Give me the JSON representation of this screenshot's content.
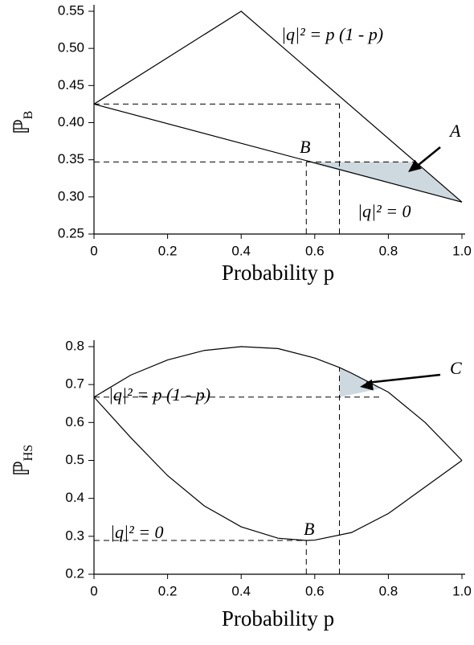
{
  "chart_data": [
    {
      "type": "line",
      "xlabel": "Probability p",
      "ylabel": "ℙ",
      "ylabel_sub": "B",
      "xlim": [
        0,
        1
      ],
      "xticks": [
        0,
        0.2,
        0.4,
        0.6,
        0.8,
        {
          "value": 1,
          "label": "1.0"
        }
      ],
      "ylim": [
        0.25,
        0.55
      ],
      "yticks": [
        0.25,
        {
          "value": 0.3,
          "label": "0.30"
        },
        0.35,
        {
          "value": 0.4,
          "label": "0.40"
        },
        0.45,
        {
          "value": 0.5,
          "label": "0.50"
        },
        0.55
      ],
      "series": [
        {
          "name": "|q|² = p (1 - p)",
          "color": "#000",
          "x": [
            0,
            0.4,
            1
          ],
          "values": [
            0.425,
            0.55,
            0.293
          ]
        },
        {
          "name": "|q|² = 0",
          "color": "#000",
          "x": [
            0,
            1
          ],
          "values": [
            0.425,
            0.293
          ]
        }
      ],
      "reference_lines": [
        {
          "x": [
            0,
            0.667
          ],
          "values": [
            0.425,
            0.425
          ]
        },
        {
          "x": [
            0.667,
            0.667
          ],
          "values": [
            0.25,
            0.425
          ]
        },
        {
          "x": [
            0,
            0.87
          ],
          "values": [
            0.347,
            0.347
          ]
        },
        {
          "x": [
            0.577,
            0.577
          ],
          "values": [
            0.25,
            0.347
          ]
        }
      ],
      "region": {
        "name": "A",
        "color": "#cdd8df",
        "x": [
          0.577,
          0.87,
          1
        ],
        "values": [
          0.347,
          0.347,
          0.293
        ]
      },
      "point_label": "B"
    },
    {
      "type": "line",
      "xlabel": "Probability p",
      "ylabel": "ℙ",
      "ylabel_sub": "HS",
      "xlim": [
        0,
        1
      ],
      "xticks": [
        0,
        0.2,
        0.4,
        0.6,
        0.8,
        {
          "value": 1,
          "label": "1.0"
        }
      ],
      "ylim": [
        0.2,
        0.8
      ],
      "yticks": [
        0.2,
        0.3,
        0.4,
        0.5,
        0.6,
        0.7,
        0.8
      ],
      "series": [
        {
          "name": "|q|² = p (1 - p)",
          "color": "#000",
          "x": [
            0,
            0.1,
            0.2,
            0.3,
            0.4,
            0.5,
            0.6,
            0.667,
            0.7,
            0.8,
            0.9,
            1
          ],
          "values": [
            0.667,
            0.725,
            0.765,
            0.79,
            0.8,
            0.795,
            0.77,
            0.745,
            0.73,
            0.68,
            0.6,
            0.5
          ]
        },
        {
          "name": "|q|² = 0",
          "color": "#000",
          "x": [
            0,
            0.1,
            0.2,
            0.3,
            0.4,
            0.5,
            0.577,
            0.6,
            0.7,
            0.8,
            0.9,
            1
          ],
          "values": [
            0.667,
            0.56,
            0.46,
            0.38,
            0.325,
            0.295,
            0.289,
            0.29,
            0.31,
            0.36,
            0.43,
            0.5
          ]
        }
      ],
      "reference_lines": [
        {
          "x": [
            0,
            0.78
          ],
          "values": [
            0.667,
            0.667
          ]
        },
        {
          "x": [
            0.667,
            0.667
          ],
          "values": [
            0.2,
            0.745
          ]
        },
        {
          "x": [
            0,
            0.577
          ],
          "values": [
            0.289,
            0.289
          ]
        },
        {
          "x": [
            0.577,
            0.577
          ],
          "values": [
            0.2,
            0.289
          ]
        }
      ],
      "region": {
        "name": "C",
        "color": "#cdd8df",
        "x": [
          0.667,
          0.667,
          0.7,
          0.78
        ],
        "values": [
          0.667,
          0.745,
          0.73,
          0.69
        ]
      },
      "point_label": "B"
    }
  ]
}
